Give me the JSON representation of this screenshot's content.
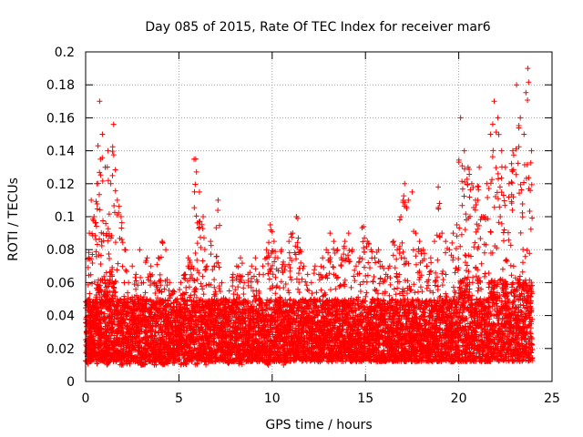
{
  "chart_data": {
    "type": "scatter",
    "title": "Day 085 of 2015, Rate Of TEC Index for receiver mar6",
    "xlabel": "GPS time / hours",
    "ylabel": "ROTI / TECUs",
    "xlim": [
      0,
      25
    ],
    "ylim": [
      0,
      0.2
    ],
    "x_ticks": [
      "0",
      "5",
      "10",
      "15",
      "20",
      "25"
    ],
    "y_ticks": [
      "0",
      "0.02",
      "0.04",
      "0.06",
      "0.08",
      "0.1",
      "0.12",
      "0.14",
      "0.16",
      "0.18",
      "0.2"
    ],
    "grid": true,
    "legend": "none",
    "marker": "plus",
    "color": "#ff0000",
    "series": [
      {
        "x": [
          0.05,
          0.2,
          0.3,
          0.45,
          0.6,
          0.75,
          0.9,
          1.05,
          1.2,
          1.35,
          1.5,
          1.7,
          1.9,
          2.1,
          2.3,
          2.5,
          2.7,
          2.9,
          3.1,
          3.3,
          3.5,
          3.7,
          3.9,
          4.1,
          4.3,
          4.5,
          4.7,
          4.9,
          5.1,
          5.3,
          5.5,
          5.7,
          5.9,
          6.1,
          6.3,
          6.5,
          6.7,
          6.9,
          7.1,
          7.3,
          7.5,
          7.7,
          7.9,
          8.1,
          8.3,
          8.5,
          8.7,
          8.9,
          9.1,
          9.3,
          9.5,
          9.7,
          9.9,
          10.1,
          10.3,
          10.5,
          10.7,
          10.9,
          11.1,
          11.3,
          11.5,
          11.7,
          11.9,
          12.1,
          12.3,
          12.5,
          12.7,
          12.9,
          13.1,
          13.3,
          13.5,
          13.7,
          13.9,
          14.1,
          14.3,
          14.5,
          14.7,
          14.9,
          15.1,
          15.3,
          15.5,
          15.7,
          15.9,
          16.1,
          16.3,
          16.5,
          16.7,
          16.9,
          17.1,
          17.3,
          17.5,
          17.7,
          17.9,
          18.1,
          18.3,
          18.5,
          18.7,
          18.9,
          19.1,
          19.3,
          19.5,
          19.7,
          19.9,
          20.1,
          20.3,
          20.5,
          20.7,
          20.9,
          21.1,
          21.3,
          21.5,
          21.7,
          21.9,
          22.1,
          22.3,
          22.5,
          22.7,
          22.9,
          23.1,
          23.3,
          23.5,
          23.7,
          23.9
        ],
        "y": [
          0.03,
          0.09,
          0.11,
          0.1,
          0.12,
          0.17,
          0.15,
          0.13,
          0.14,
          0.12,
          0.156,
          0.11,
          0.1,
          0.08,
          0.06,
          0.07,
          0.065,
          0.08,
          0.06,
          0.075,
          0.07,
          0.06,
          0.075,
          0.085,
          0.08,
          0.06,
          0.055,
          0.05,
          0.06,
          0.065,
          0.075,
          0.07,
          0.135,
          0.115,
          0.1,
          0.07,
          0.085,
          0.07,
          0.11,
          0.06,
          0.05,
          0.055,
          0.065,
          0.07,
          0.075,
          0.06,
          0.065,
          0.07,
          0.075,
          0.065,
          0.07,
          0.08,
          0.095,
          0.085,
          0.075,
          0.08,
          0.07,
          0.085,
          0.09,
          0.1,
          0.08,
          0.07,
          0.065,
          0.06,
          0.07,
          0.065,
          0.075,
          0.08,
          0.09,
          0.085,
          0.08,
          0.075,
          0.085,
          0.09,
          0.08,
          0.07,
          0.075,
          0.094,
          0.085,
          0.08,
          0.075,
          0.08,
          0.07,
          0.065,
          0.07,
          0.085,
          0.08,
          0.1,
          0.12,
          0.11,
          0.115,
          0.09,
          0.085,
          0.08,
          0.07,
          0.075,
          0.085,
          0.118,
          0.09,
          0.085,
          0.08,
          0.09,
          0.095,
          0.16,
          0.14,
          0.13,
          0.12,
          0.11,
          0.13,
          0.1,
          0.12,
          0.15,
          0.17,
          0.16,
          0.14,
          0.13,
          0.12,
          0.14,
          0.18,
          0.16,
          0.15,
          0.19,
          0.14
        ],
        "y_min_band": [
          0.01,
          0.012,
          0.012,
          0.012,
          0.01,
          0.012,
          0.012,
          0.012,
          0.01,
          0.012,
          0.012,
          0.012,
          0.01,
          0.012,
          0.01,
          0.012,
          0.012,
          0.01,
          0.01,
          0.012,
          0.012,
          0.01,
          0.012,
          0.01,
          0.01,
          0.012,
          0.01,
          0.012,
          0.01,
          0.01,
          0.012,
          0.012,
          0.01,
          0.012,
          0.012,
          0.01,
          0.012,
          0.012,
          0.012,
          0.012,
          0.012,
          0.01,
          0.012,
          0.012,
          0.01,
          0.012,
          0.012,
          0.012,
          0.012,
          0.012,
          0.012,
          0.01,
          0.012,
          0.012,
          0.012,
          0.012,
          0.01,
          0.012,
          0.012,
          0.012,
          0.012,
          0.012,
          0.012,
          0.012,
          0.012,
          0.012,
          0.012,
          0.012,
          0.012,
          0.012,
          0.012,
          0.012,
          0.012,
          0.012,
          0.012,
          0.012,
          0.012,
          0.012,
          0.012,
          0.012,
          0.012,
          0.012,
          0.012,
          0.012,
          0.012,
          0.012,
          0.012,
          0.012,
          0.012,
          0.012,
          0.012,
          0.012,
          0.012,
          0.012,
          0.012,
          0.012,
          0.012,
          0.012,
          0.012,
          0.012,
          0.012,
          0.012,
          0.012,
          0.012,
          0.012,
          0.012,
          0.012,
          0.012,
          0.012,
          0.012,
          0.012,
          0.012,
          0.012,
          0.012,
          0.012,
          0.012,
          0.012,
          0.012,
          0.012,
          0.012,
          0.012,
          0.012,
          0.012
        ]
      }
    ]
  }
}
